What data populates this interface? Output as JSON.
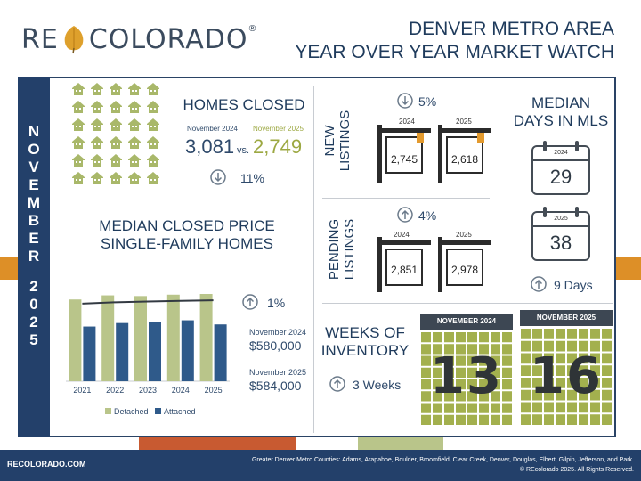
{
  "brand": {
    "logo_left": "RE",
    "logo_right": "COLORADO",
    "trademark": "®"
  },
  "header": {
    "line1": "DENVER METRO AREA",
    "line2": "YEAR OVER YEAR MARKET WATCH"
  },
  "side": {
    "letters": [
      "N",
      "O",
      "V",
      "E",
      "M",
      "B",
      "E",
      "R",
      "",
      "2",
      "0",
      "2",
      "5"
    ]
  },
  "homes_closed": {
    "title": "HOMES CLOSED",
    "prev_label": "November 2024",
    "curr_label": "November 2025",
    "prev_value": "3,081",
    "vs": "vs.",
    "curr_value": "2,749",
    "change": "11%",
    "direction": "down"
  },
  "median_price": {
    "title_line1": "MEDIAN CLOSED PRICE",
    "title_line2": "SINGLE-FAMILY HOMES",
    "change": "1%",
    "direction": "up",
    "prev_label": "November 2024",
    "prev_value": "$580,000",
    "curr_label": "November 2025",
    "curr_value": "$584,000"
  },
  "chart_data": {
    "type": "bar",
    "categories": [
      "2021",
      "2022",
      "2023",
      "2024",
      "2025"
    ],
    "series": [
      {
        "name": "Detached",
        "values": [
          590,
          620,
          615,
          625,
          630
        ],
        "color": "#b9c58a"
      },
      {
        "name": "Attached",
        "values": [
          395,
          420,
          425,
          440,
          410
        ],
        "color": "#2f5a8a"
      }
    ],
    "trend_values": [
      560,
      570,
      575,
      580,
      584
    ],
    "legend_position": "bottom",
    "ylim": [
      0,
      720
    ]
  },
  "new_listings": {
    "label_line1": "NEW",
    "label_line2": "LISTINGS",
    "change": "5%",
    "direction": "down",
    "year1": "2024",
    "value1": "2,745",
    "year2": "2025",
    "value2": "2,618"
  },
  "pending_listings": {
    "label_line1": "PENDING",
    "label_line2": "LISTINGS",
    "change": "4%",
    "direction": "up",
    "year1": "2024",
    "value1": "2,851",
    "year2": "2025",
    "value2": "2,978"
  },
  "days_in_mls": {
    "title_line1": "MEDIAN",
    "title_line2": "DAYS IN MLS",
    "year1": "2024",
    "value1": "29",
    "year2": "2025",
    "value2": "38",
    "change": "9 Days",
    "direction": "up"
  },
  "weeks_inventory": {
    "title_line1": "WEEKS OF",
    "title_line2": "INVENTORY",
    "change": "3 Weeks",
    "direction": "up",
    "hdr1": "NOVEMBER 2024",
    "value1": "13",
    "hdr2": "NOVEMBER 2025",
    "value2": "16"
  },
  "footer": {
    "site": "RECOLORADO.COM",
    "counties": "Greater Denver Metro Counties: Adams, Arapahoe, Boulder, Broomfield, Clear Creek, Denver, Douglas, Elbert, Gilpin, Jefferson, and Park.",
    "copyright": "© REcolorado 2025. All Rights Reserved."
  },
  "colors": {
    "navy": "#23406a",
    "orange": "#dd8f27",
    "rust": "#c85a31",
    "green": "#b9c58a",
    "olive": "#9ca842"
  }
}
